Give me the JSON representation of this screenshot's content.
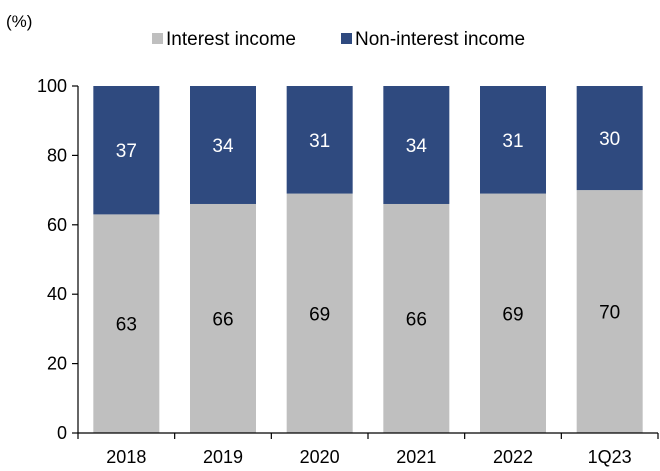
{
  "chart_data": {
    "type": "bar",
    "stacked": true,
    "unit_label": "(%)",
    "categories": [
      "2018",
      "2019",
      "2020",
      "2021",
      "2022",
      "1Q23"
    ],
    "series": [
      {
        "name": "Interest income",
        "values": [
          63,
          66,
          69,
          66,
          69,
          70
        ],
        "color": "#bfbfbf",
        "label_color": "#000000"
      },
      {
        "name": "Non-interest income",
        "values": [
          37,
          34,
          31,
          34,
          31,
          30
        ],
        "color": "#2f4a7f",
        "label_color": "#ffffff"
      }
    ],
    "ylim": [
      0,
      100
    ],
    "yticks": [
      "0",
      "20",
      "40",
      "60",
      "80",
      "100"
    ],
    "grid": false,
    "legend_position": "top"
  }
}
